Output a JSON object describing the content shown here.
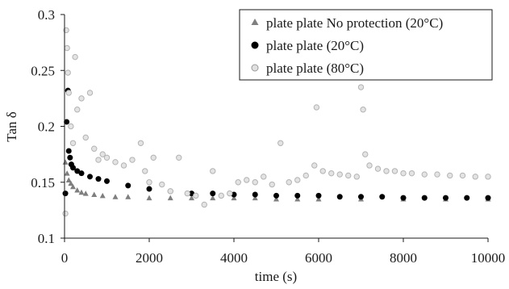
{
  "chart_data": {
    "type": "scatter",
    "xlabel": "time (s)",
    "ylabel": "Tan δ",
    "xlim": [
      0,
      10000
    ],
    "ylim": [
      0.1,
      0.3
    ],
    "x_ticks": [
      "0",
      "2000",
      "4000",
      "6000",
      "8000",
      "10000"
    ],
    "y_ticks": [
      "0.1",
      "0.15",
      "0.2",
      "0.25",
      "0.3"
    ],
    "grid": false,
    "legend_position": "top-right",
    "series": [
      {
        "name": "plate plate No protection (20°C)",
        "marker": "triangle",
        "color": "#7f7f7f",
        "x": [
          20,
          60,
          100,
          150,
          200,
          300,
          400,
          500,
          700,
          900,
          1200,
          1500,
          2000,
          2500,
          3000,
          3500,
          4000,
          4500,
          5000,
          5500,
          6000,
          7000,
          8000,
          9000,
          10000
        ],
        "y": [
          0.168,
          0.158,
          0.152,
          0.149,
          0.146,
          0.143,
          0.141,
          0.14,
          0.139,
          0.138,
          0.137,
          0.137,
          0.136,
          0.136,
          0.136,
          0.136,
          0.136,
          0.136,
          0.135,
          0.135,
          0.135,
          0.135,
          0.135,
          0.135,
          0.135
        ]
      },
      {
        "name": "plate plate (20°C)",
        "marker": "circle-filled",
        "color": "#000000",
        "x": [
          20,
          50,
          80,
          100,
          130,
          160,
          200,
          300,
          400,
          600,
          800,
          1000,
          1500,
          2000,
          2500,
          3000,
          3500,
          4000,
          4500,
          5000,
          5500,
          6000,
          6500,
          7000,
          7500,
          8000,
          8500,
          9000,
          9500,
          10000
        ],
        "y": [
          0.14,
          0.204,
          0.232,
          0.178,
          0.172,
          0.166,
          0.163,
          0.16,
          0.158,
          0.155,
          0.153,
          0.151,
          0.147,
          0.144,
          0.142,
          0.14,
          0.14,
          0.139,
          0.139,
          0.138,
          0.138,
          0.138,
          0.137,
          0.137,
          0.137,
          0.136,
          0.136,
          0.136,
          0.136,
          0.136
        ]
      },
      {
        "name": "plate plate (80°C)",
        "marker": "circle-open",
        "color": "#b3b3b3",
        "x": [
          20,
          40,
          60,
          80,
          100,
          150,
          200,
          250,
          300,
          400,
          500,
          600,
          700,
          800,
          900,
          1000,
          1200,
          1400,
          1600,
          1800,
          1900,
          2000,
          2100,
          2300,
          2500,
          2700,
          2900,
          3100,
          3300,
          3500,
          3700,
          3900,
          4100,
          4300,
          4500,
          4700,
          4900,
          5100,
          5300,
          5500,
          5700,
          5900,
          5950,
          6100,
          6300,
          6500,
          6700,
          6900,
          7000,
          7050,
          7100,
          7200,
          7400,
          7600,
          7800,
          8000,
          8200,
          8500,
          8800,
          9100,
          9400,
          9700,
          10000
        ],
        "y": [
          0.122,
          0.286,
          0.27,
          0.248,
          0.23,
          0.2,
          0.185,
          0.262,
          0.215,
          0.225,
          0.19,
          0.23,
          0.18,
          0.17,
          0.175,
          0.172,
          0.168,
          0.165,
          0.17,
          0.185,
          0.16,
          0.15,
          0.172,
          0.148,
          0.142,
          0.172,
          0.14,
          0.138,
          0.13,
          0.16,
          0.138,
          0.14,
          0.15,
          0.152,
          0.15,
          0.155,
          0.148,
          0.185,
          0.15,
          0.152,
          0.156,
          0.165,
          0.217,
          0.16,
          0.158,
          0.157,
          0.156,
          0.155,
          0.235,
          0.215,
          0.175,
          0.165,
          0.162,
          0.16,
          0.16,
          0.158,
          0.158,
          0.157,
          0.157,
          0.156,
          0.156,
          0.155,
          0.155
        ]
      }
    ]
  }
}
